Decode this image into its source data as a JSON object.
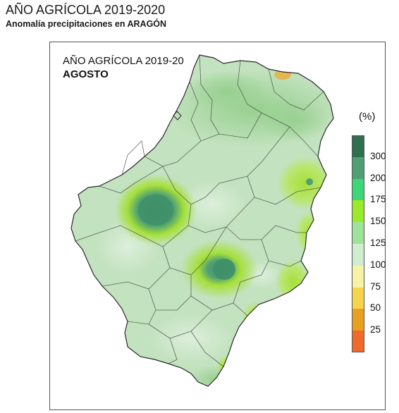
{
  "header": {
    "title": "AÑO AGRÍCOLA 2019-2020",
    "subtitle": "Anomalía precipitaciones en ARAGÓN"
  },
  "map": {
    "label_line1": "AÑO AGRÍCOLA 2019-20",
    "label_line2": "AGOSTO"
  },
  "legend": {
    "unit": "(%)",
    "ticks": [
      "300",
      "200",
      "175",
      "150",
      "125",
      "100",
      "75",
      "50",
      "25"
    ],
    "colors": [
      "#2f6e4f",
      "#4fa072",
      "#3fd67a",
      "#9bea2a",
      "#9fe39a",
      "#cfeed0",
      "#f6f2a6",
      "#f6d44c",
      "#e8a021",
      "#f0682a"
    ]
  },
  "colors": {
    "region_base": "#c8e4c4",
    "region_mid": "#a9d8a1",
    "anomaly_high": "#3f9a72",
    "anomaly_lime": "#a6e03a",
    "anomaly_dry": "#f2a83c",
    "boundary": "#3a3a3a"
  }
}
